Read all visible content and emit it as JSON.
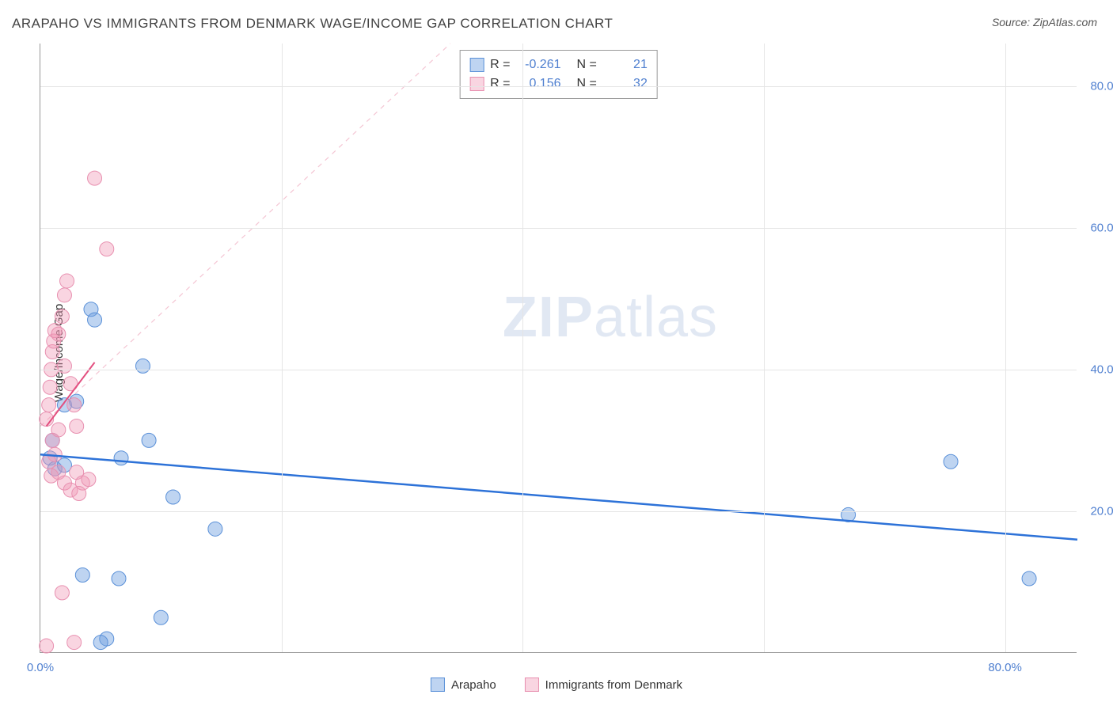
{
  "title": "ARAPAHO VS IMMIGRANTS FROM DENMARK WAGE/INCOME GAP CORRELATION CHART",
  "source": "Source: ZipAtlas.com",
  "ylabel": "Wage/Income Gap",
  "watermark": {
    "zip": "ZIP",
    "atlas": "atlas"
  },
  "chart": {
    "type": "scatter",
    "xlim": [
      0,
      86
    ],
    "ylim": [
      0,
      86
    ],
    "grid_color": "#e5e5e5",
    "axis_color": "#999999",
    "background_color": "#ffffff",
    "yticks": [
      {
        "v": 20,
        "label": "20.0%"
      },
      {
        "v": 40,
        "label": "40.0%"
      },
      {
        "v": 60,
        "label": "60.0%"
      },
      {
        "v": 80,
        "label": "80.0%"
      }
    ],
    "xticks": [
      {
        "v": 0,
        "label": "0.0%"
      },
      {
        "v": 80,
        "label": "80.0%"
      }
    ],
    "xgrid": [
      20,
      40,
      60,
      80
    ],
    "series": [
      {
        "name": "Arapaho",
        "color_fill": "rgba(110,160,225,0.45)",
        "color_stroke": "#5a90d8",
        "trend_color": "#2d72d8",
        "trend_width": 2.5,
        "marker_r": 9,
        "stats": {
          "R": "-0.261",
          "N": "21"
        },
        "trend": {
          "x1": 0,
          "y1": 28,
          "x2": 86,
          "y2": 16
        },
        "points": [
          [
            0.8,
            27.5
          ],
          [
            1.2,
            26.0
          ],
          [
            1.0,
            30.0
          ],
          [
            2.0,
            35.0
          ],
          [
            3.0,
            35.5
          ],
          [
            4.2,
            48.5
          ],
          [
            4.5,
            47.0
          ],
          [
            5.5,
            2.0
          ],
          [
            6.5,
            10.5
          ],
          [
            6.7,
            27.5
          ],
          [
            8.5,
            40.5
          ],
          [
            9.0,
            30.0
          ],
          [
            10.0,
            5.0
          ],
          [
            11.0,
            22.0
          ],
          [
            14.5,
            17.5
          ],
          [
            3.5,
            11.0
          ],
          [
            67.0,
            19.5
          ],
          [
            75.5,
            27.0
          ],
          [
            82.0,
            10.5
          ],
          [
            2.0,
            26.5
          ],
          [
            5.0,
            1.5
          ]
        ]
      },
      {
        "name": "Immigrants from Denmark",
        "color_fill": "rgba(240,150,180,0.40)",
        "color_stroke": "#e890b0",
        "trend_color": "#e35080",
        "trend_width": 2,
        "marker_r": 9,
        "stats": {
          "R": "0.156",
          "N": "32"
        },
        "trend": {
          "x1": 0.5,
          "y1": 32,
          "x2": 4.5,
          "y2": 41
        },
        "diag": {
          "x1": 0,
          "y1": 32,
          "x2": 34,
          "y2": 86,
          "color": "rgba(235,150,175,0.55)"
        },
        "points": [
          [
            0.5,
            33.0
          ],
          [
            0.7,
            35.0
          ],
          [
            0.8,
            37.5
          ],
          [
            0.9,
            40.0
          ],
          [
            1.0,
            42.5
          ],
          [
            1.1,
            44.0
          ],
          [
            1.2,
            45.5
          ],
          [
            1.5,
            45.0
          ],
          [
            1.8,
            47.5
          ],
          [
            2.0,
            40.5
          ],
          [
            2.0,
            50.5
          ],
          [
            2.2,
            52.5
          ],
          [
            2.5,
            38.0
          ],
          [
            2.8,
            35.0
          ],
          [
            3.0,
            32.0
          ],
          [
            1.0,
            30.0
          ],
          [
            1.2,
            28.0
          ],
          [
            1.5,
            25.5
          ],
          [
            2.0,
            24.0
          ],
          [
            2.5,
            23.0
          ],
          [
            3.0,
            25.5
          ],
          [
            3.5,
            24.0
          ],
          [
            4.0,
            24.5
          ],
          [
            1.5,
            31.5
          ],
          [
            3.2,
            22.5
          ],
          [
            0.7,
            27.0
          ],
          [
            0.9,
            25.0
          ],
          [
            1.8,
            8.5
          ],
          [
            4.5,
            67.0
          ],
          [
            5.5,
            57.0
          ],
          [
            2.8,
            1.5
          ],
          [
            0.5,
            1.0
          ]
        ]
      }
    ],
    "legend_labels": {
      "series1": "Arapaho",
      "series2": "Immigrants from Denmark"
    }
  }
}
